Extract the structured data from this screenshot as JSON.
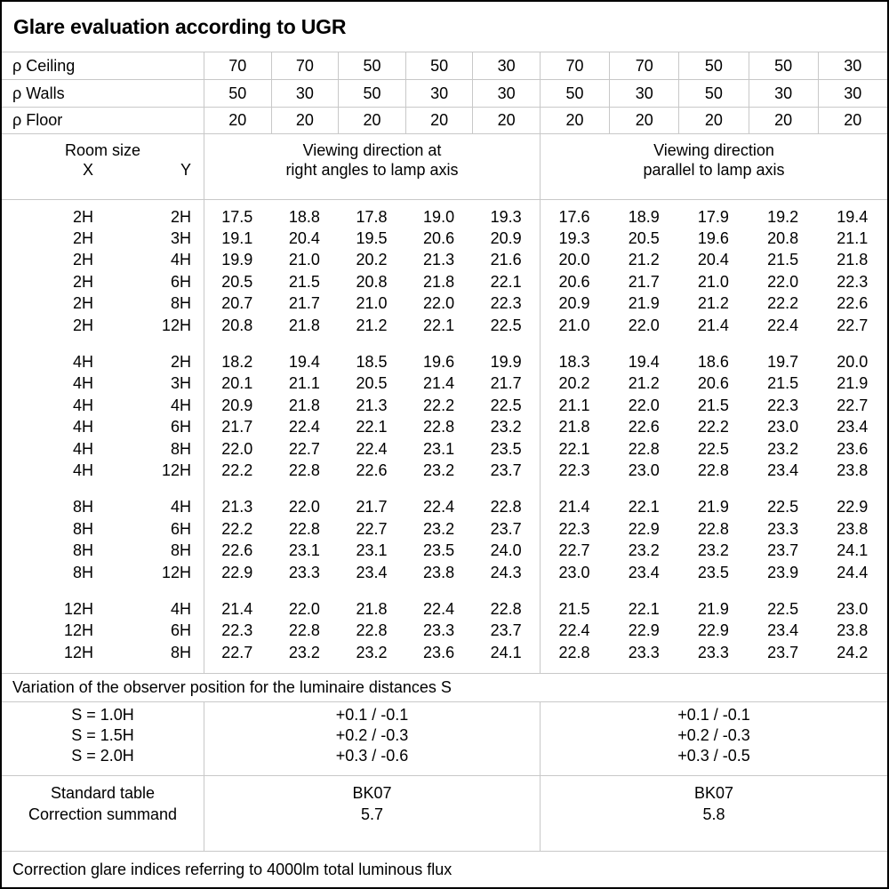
{
  "title": "Glare evaluation according to UGR",
  "colors": {
    "background": "#ffffff",
    "text": "#000000",
    "grid_line": "#c8c8c8",
    "outer_border": "#000000"
  },
  "reflectance_rows": [
    {
      "label": "ρ Ceiling",
      "values": [
        "70",
        "70",
        "50",
        "50",
        "30",
        "70",
        "70",
        "50",
        "50",
        "30"
      ]
    },
    {
      "label": "ρ Walls",
      "values": [
        "50",
        "30",
        "50",
        "30",
        "30",
        "50",
        "30",
        "50",
        "30",
        "30"
      ]
    },
    {
      "label": "ρ Floor",
      "values": [
        "20",
        "20",
        "20",
        "20",
        "20",
        "20",
        "20",
        "20",
        "20",
        "20"
      ]
    }
  ],
  "room_header": {
    "title": "Room size",
    "x": "X",
    "y": "Y"
  },
  "section_headers": {
    "right_angles": {
      "line1": "Viewing direction at",
      "line2": "right angles to lamp axis"
    },
    "parallel": {
      "line1": "Viewing direction",
      "line2": "parallel to lamp axis"
    }
  },
  "ugr_blocks": [
    {
      "rows": [
        {
          "x": "2H",
          "y": "2H",
          "ra": [
            "17.5",
            "18.8",
            "17.8",
            "19.0",
            "19.3"
          ],
          "pa": [
            "17.6",
            "18.9",
            "17.9",
            "19.2",
            "19.4"
          ]
        },
        {
          "x": "2H",
          "y": "3H",
          "ra": [
            "19.1",
            "20.4",
            "19.5",
            "20.6",
            "20.9"
          ],
          "pa": [
            "19.3",
            "20.5",
            "19.6",
            "20.8",
            "21.1"
          ]
        },
        {
          "x": "2H",
          "y": "4H",
          "ra": [
            "19.9",
            "21.0",
            "20.2",
            "21.3",
            "21.6"
          ],
          "pa": [
            "20.0",
            "21.2",
            "20.4",
            "21.5",
            "21.8"
          ]
        },
        {
          "x": "2H",
          "y": "6H",
          "ra": [
            "20.5",
            "21.5",
            "20.8",
            "21.8",
            "22.1"
          ],
          "pa": [
            "20.6",
            "21.7",
            "21.0",
            "22.0",
            "22.3"
          ]
        },
        {
          "x": "2H",
          "y": "8H",
          "ra": [
            "20.7",
            "21.7",
            "21.0",
            "22.0",
            "22.3"
          ],
          "pa": [
            "20.9",
            "21.9",
            "21.2",
            "22.2",
            "22.6"
          ]
        },
        {
          "x": "2H",
          "y": "12H",
          "ra": [
            "20.8",
            "21.8",
            "21.2",
            "22.1",
            "22.5"
          ],
          "pa": [
            "21.0",
            "22.0",
            "21.4",
            "22.4",
            "22.7"
          ]
        }
      ]
    },
    {
      "rows": [
        {
          "x": "4H",
          "y": "2H",
          "ra": [
            "18.2",
            "19.4",
            "18.5",
            "19.6",
            "19.9"
          ],
          "pa": [
            "18.3",
            "19.4",
            "18.6",
            "19.7",
            "20.0"
          ]
        },
        {
          "x": "4H",
          "y": "3H",
          "ra": [
            "20.1",
            "21.1",
            "20.5",
            "21.4",
            "21.7"
          ],
          "pa": [
            "20.2",
            "21.2",
            "20.6",
            "21.5",
            "21.9"
          ]
        },
        {
          "x": "4H",
          "y": "4H",
          "ra": [
            "20.9",
            "21.8",
            "21.3",
            "22.2",
            "22.5"
          ],
          "pa": [
            "21.1",
            "22.0",
            "21.5",
            "22.3",
            "22.7"
          ]
        },
        {
          "x": "4H",
          "y": "6H",
          "ra": [
            "21.7",
            "22.4",
            "22.1",
            "22.8",
            "23.2"
          ],
          "pa": [
            "21.8",
            "22.6",
            "22.2",
            "23.0",
            "23.4"
          ]
        },
        {
          "x": "4H",
          "y": "8H",
          "ra": [
            "22.0",
            "22.7",
            "22.4",
            "23.1",
            "23.5"
          ],
          "pa": [
            "22.1",
            "22.8",
            "22.5",
            "23.2",
            "23.6"
          ]
        },
        {
          "x": "4H",
          "y": "12H",
          "ra": [
            "22.2",
            "22.8",
            "22.6",
            "23.2",
            "23.7"
          ],
          "pa": [
            "22.3",
            "23.0",
            "22.8",
            "23.4",
            "23.8"
          ]
        }
      ]
    },
    {
      "rows": [
        {
          "x": "8H",
          "y": "4H",
          "ra": [
            "21.3",
            "22.0",
            "21.7",
            "22.4",
            "22.8"
          ],
          "pa": [
            "21.4",
            "22.1",
            "21.9",
            "22.5",
            "22.9"
          ]
        },
        {
          "x": "8H",
          "y": "6H",
          "ra": [
            "22.2",
            "22.8",
            "22.7",
            "23.2",
            "23.7"
          ],
          "pa": [
            "22.3",
            "22.9",
            "22.8",
            "23.3",
            "23.8"
          ]
        },
        {
          "x": "8H",
          "y": "8H",
          "ra": [
            "22.6",
            "23.1",
            "23.1",
            "23.5",
            "24.0"
          ],
          "pa": [
            "22.7",
            "23.2",
            "23.2",
            "23.7",
            "24.1"
          ]
        },
        {
          "x": "8H",
          "y": "12H",
          "ra": [
            "22.9",
            "23.3",
            "23.4",
            "23.8",
            "24.3"
          ],
          "pa": [
            "23.0",
            "23.4",
            "23.5",
            "23.9",
            "24.4"
          ]
        }
      ]
    },
    {
      "rows": [
        {
          "x": "12H",
          "y": "4H",
          "ra": [
            "21.4",
            "22.0",
            "21.8",
            "22.4",
            "22.8"
          ],
          "pa": [
            "21.5",
            "22.1",
            "21.9",
            "22.5",
            "23.0"
          ]
        },
        {
          "x": "12H",
          "y": "6H",
          "ra": [
            "22.3",
            "22.8",
            "22.8",
            "23.3",
            "23.7"
          ],
          "pa": [
            "22.4",
            "22.9",
            "22.9",
            "23.4",
            "23.8"
          ]
        },
        {
          "x": "12H",
          "y": "8H",
          "ra": [
            "22.7",
            "23.2",
            "23.2",
            "23.6",
            "24.1"
          ],
          "pa": [
            "22.8",
            "23.3",
            "23.3",
            "23.7",
            "24.2"
          ]
        }
      ]
    }
  ],
  "variation": {
    "note": "Variation of the observer position for the luminaire distances S",
    "rows": [
      {
        "label": "S = 1.0H",
        "ra": "+0.1 / -0.1",
        "pa": "+0.1 / -0.1"
      },
      {
        "label": "S = 1.5H",
        "ra": "+0.2 / -0.3",
        "pa": "+0.2 / -0.3"
      },
      {
        "label": "S = 2.0H",
        "ra": "+0.3 / -0.6",
        "pa": "+0.3 / -0.5"
      }
    ]
  },
  "summary": {
    "rows": [
      {
        "label": "Standard table",
        "ra": "BK07",
        "pa": "BK07"
      },
      {
        "label": "Correction summand",
        "ra": "5.7",
        "pa": "5.8"
      }
    ]
  },
  "footnote": "Correction glare indices referring to 4000lm total luminous flux"
}
